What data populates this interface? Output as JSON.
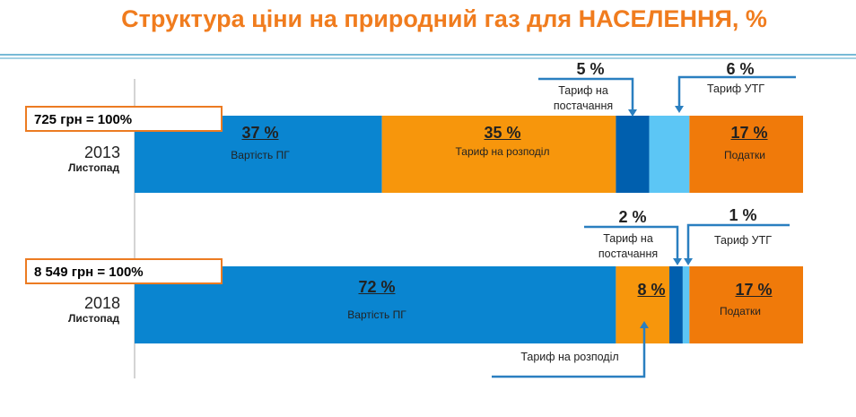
{
  "title": "Структура ціни на природний газ для НАСЕЛЕННЯ, %",
  "rows": [
    {
      "total": "725 грн = 100%",
      "year": "2013",
      "month": "Листопад"
    },
    {
      "total": "8 549 грн = 100%",
      "year": "2018",
      "month": "Листопад"
    }
  ],
  "chart_data": {
    "type": "bar",
    "orientation": "horizontal",
    "stacked": true,
    "title": "Структура ціни на природний газ для НАСЕЛЕННЯ, %",
    "categories": [
      "2013 Листопад",
      "2018 Листопад"
    ],
    "series": [
      {
        "name": "Вартість ПГ",
        "values": [
          37,
          72
        ],
        "labels": [
          "37 %",
          "72 %"
        ],
        "color": "#0a85d0"
      },
      {
        "name": "Тариф на розподіл",
        "values": [
          35,
          8
        ],
        "labels": [
          "35 %",
          "8 %"
        ],
        "color": "#f7960c"
      },
      {
        "name": "Тариф на постачання",
        "values": [
          5,
          2
        ],
        "labels": [
          "5 %",
          "2 %"
        ],
        "color": "#005fae"
      },
      {
        "name": "Тариф УТГ",
        "values": [
          6,
          1
        ],
        "labels": [
          "6 %",
          "1 %"
        ],
        "color": "#5cc6f5"
      },
      {
        "name": "Податки",
        "values": [
          17,
          17
        ],
        "labels": [
          "17 %",
          "17 %"
        ],
        "color": "#f07a0a"
      }
    ],
    "xlim": [
      0,
      100
    ]
  },
  "callouts": {
    "supply_line1": "Тариф на",
    "supply_line2": "постачання",
    "distribution": "Тариф на розподіл"
  }
}
